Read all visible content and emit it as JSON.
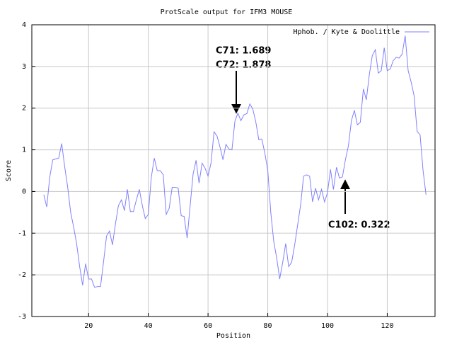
{
  "chart_data": {
    "type": "line",
    "title": "ProtScale output for IFM3 MOUSE",
    "xlabel": "Position",
    "ylabel": "Score",
    "x": [
      5,
      6,
      7,
      8,
      9,
      10,
      11,
      12,
      13,
      14,
      15,
      16,
      17,
      18,
      19,
      20,
      21,
      22,
      23,
      24,
      25,
      26,
      27,
      28,
      29,
      30,
      31,
      32,
      33,
      34,
      35,
      36,
      37,
      38,
      39,
      40,
      41,
      42,
      43,
      44,
      45,
      46,
      47,
      48,
      49,
      50,
      51,
      52,
      53,
      54,
      55,
      56,
      57,
      58,
      59,
      60,
      61,
      62,
      63,
      64,
      65,
      66,
      67,
      68,
      69,
      70,
      71,
      72,
      73,
      74,
      75,
      76,
      77,
      78,
      79,
      80,
      81,
      82,
      83,
      84,
      85,
      86,
      87,
      88,
      89,
      90,
      91,
      92,
      93,
      94,
      95,
      96,
      97,
      98,
      99,
      100,
      101,
      102,
      103,
      104,
      105,
      106,
      107,
      108,
      109,
      110,
      111,
      112,
      113,
      114,
      115,
      116,
      117,
      118,
      119,
      120,
      121,
      122,
      123,
      124,
      125,
      126,
      127,
      128,
      129,
      130,
      131,
      132,
      133
    ],
    "series": [
      {
        "name": "Hphob. / Kyte & Doolittle",
        "color": "#8080ff",
        "values": [
          -0.08,
          -0.37,
          0.34,
          0.76,
          0.78,
          0.8,
          1.15,
          0.6,
          0.1,
          -0.5,
          -0.85,
          -1.25,
          -1.8,
          -2.25,
          -1.73,
          -2.1,
          -2.1,
          -2.3,
          -2.28,
          -2.28,
          -1.7,
          -1.07,
          -0.95,
          -1.28,
          -0.78,
          -0.34,
          -0.2,
          -0.46,
          0.05,
          -0.48,
          -0.48,
          -0.2,
          0.05,
          -0.34,
          -0.65,
          -0.55,
          0.34,
          0.8,
          0.5,
          0.5,
          0.4,
          -0.55,
          -0.4,
          0.1,
          0.1,
          0.08,
          -0.58,
          -0.6,
          -1.12,
          -0.34,
          0.42,
          0.75,
          0.2,
          0.68,
          0.56,
          0.37,
          0.68,
          1.43,
          1.33,
          1.07,
          0.76,
          1.13,
          1.02,
          1.0,
          1.689,
          1.878,
          1.7,
          1.84,
          1.87,
          2.1,
          1.98,
          1.66,
          1.24,
          1.26,
          0.93,
          0.5,
          -0.5,
          -1.2,
          -1.6,
          -2.1,
          -1.7,
          -1.25,
          -1.8,
          -1.7,
          -1.28,
          -0.8,
          -0.32,
          0.37,
          0.4,
          0.37,
          -0.25,
          0.08,
          -0.2,
          0.05,
          -0.25,
          -0.03,
          0.53,
          0.05,
          0.58,
          0.322,
          0.35,
          0.76,
          1.1,
          1.7,
          1.95,
          1.6,
          1.66,
          2.46,
          2.2,
          2.8,
          3.26,
          3.4,
          2.84,
          2.9,
          3.45,
          2.9,
          2.94,
          3.14,
          3.22,
          3.2,
          3.3,
          3.74,
          2.9,
          2.63,
          2.3,
          1.44,
          1.36,
          0.5,
          -0.08
        ]
      }
    ],
    "xlim": [
      1,
      136
    ],
    "xticks": [
      20,
      40,
      60,
      80,
      100,
      120
    ],
    "ylim": [
      -3,
      4
    ],
    "yticks": [
      -3,
      -2,
      -1,
      0,
      1,
      2,
      3,
      4
    ],
    "grid": true,
    "legend": "upper right",
    "annotations": [
      {
        "text": "C71: 1.689"
      },
      {
        "text": "C72: 1.878"
      },
      {
        "text": "C102: 0.322"
      }
    ]
  }
}
